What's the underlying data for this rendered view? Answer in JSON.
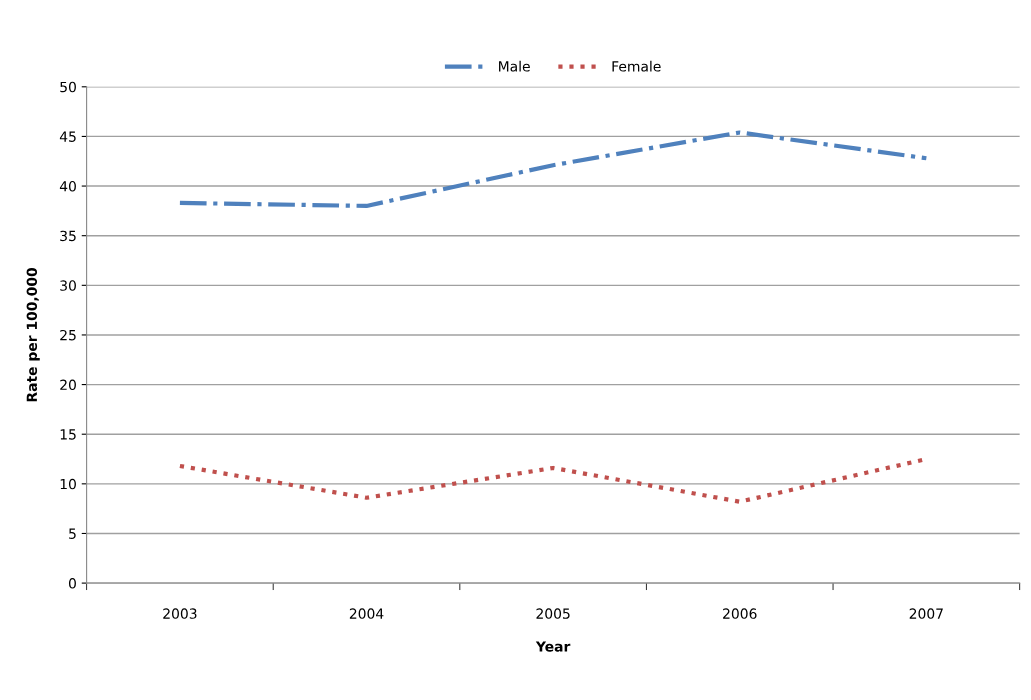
{
  "chart_data": {
    "type": "line",
    "xlabel": "Year",
    "ylabel": "Rate per 100,000",
    "categories": [
      "2003",
      "2004",
      "2005",
      "2006",
      "2007"
    ],
    "series": [
      {
        "name": "Male",
        "color": "#4f81bd",
        "line_style": "dashdot",
        "values": [
          38.3,
          38.0,
          42.1,
          45.4,
          42.8
        ]
      },
      {
        "name": "Female",
        "color": "#c0504d",
        "line_style": "dotted",
        "values": [
          11.8,
          8.6,
          11.6,
          8.2,
          12.5
        ]
      }
    ],
    "ylim": [
      0,
      50
    ],
    "yticks": [
      0,
      5,
      10,
      15,
      20,
      25,
      30,
      35,
      40,
      45,
      50
    ],
    "grid": "y",
    "legend": "top",
    "marker": "none"
  }
}
